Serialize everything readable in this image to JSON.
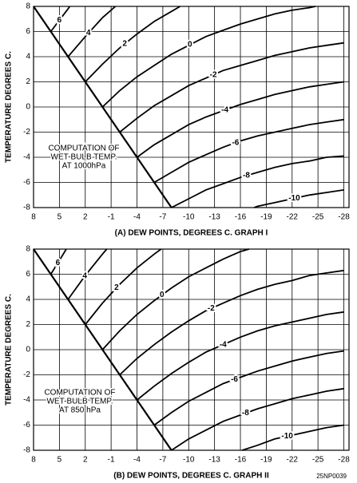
{
  "chart_data": [
    {
      "type": "line",
      "xlabel": "(A) DEW POINTS, DEGREES C. GRAPH I",
      "ylabel": "TEMPERATURE DEGREES C.",
      "annotation": [
        "COMPUTATION OF",
        "WET-BULB TEMP.",
        "AT 1000hPa"
      ],
      "xlim": [
        8,
        -28.6
      ],
      "ylim": [
        -8,
        8
      ],
      "xticks": [
        8,
        5,
        2,
        -1,
        -4,
        -7,
        -10,
        -13,
        -16,
        -19,
        -22,
        -25,
        -28
      ],
      "yticks": [
        8,
        6,
        4,
        2,
        0,
        -2,
        -4,
        -6,
        -8
      ],
      "grid": true,
      "diagonal": {
        "x": [
          8,
          -8
        ],
        "values": [
          8,
          -8
        ],
        "color": "#000000"
      },
      "series": [
        {
          "name": "6",
          "color": "#000000",
          "x": [
            6,
            4,
            3.8
          ],
          "values": [
            6,
            7.8,
            8
          ]
        },
        {
          "name": "4",
          "color": "#000000",
          "x": [
            4,
            2,
            0,
            -1.5
          ],
          "values": [
            4,
            5.6,
            7.1,
            8
          ]
        },
        {
          "name": "2",
          "color": "#000000",
          "x": [
            2,
            0,
            -2,
            -4,
            -6,
            -8,
            -9
          ],
          "values": [
            2,
            3.4,
            4.7,
            5.8,
            6.8,
            7.6,
            8
          ]
        },
        {
          "name": "0",
          "color": "#000000",
          "x": [
            0,
            -2,
            -4,
            -6,
            -8,
            -10,
            -12,
            -14,
            -16,
            -18,
            -20,
            -22,
            -24,
            -24.7
          ],
          "values": [
            0,
            1.3,
            2.4,
            3.3,
            4.2,
            4.9,
            5.6,
            6.1,
            6.6,
            7,
            7.4,
            7.7,
            7.9,
            8
          ]
        },
        {
          "name": "-2",
          "color": "#000000",
          "x": [
            -2,
            -4,
            -6,
            -8,
            -10,
            -12,
            -14,
            -16,
            -18,
            -20,
            -22,
            -24,
            -26,
            -28
          ],
          "values": [
            -2,
            -0.9,
            0.1,
            0.9,
            1.7,
            2.3,
            2.9,
            3.3,
            3.7,
            4.1,
            4.4,
            4.7,
            4.9,
            5.1
          ]
        },
        {
          "name": "-4",
          "color": "#000000",
          "x": [
            -4,
            -6,
            -8,
            -10,
            -12,
            -14,
            -16,
            -18,
            -20,
            -22,
            -24,
            -26,
            -28
          ],
          "values": [
            -4,
            -3,
            -2.2,
            -1.4,
            -0.8,
            -0.3,
            0.2,
            0.6,
            1,
            1.3,
            1.6,
            1.8,
            2
          ]
        },
        {
          "name": "-6",
          "color": "#000000",
          "x": [
            -6,
            -8,
            -10,
            -12,
            -14,
            -16,
            -18,
            -20,
            -22,
            -24,
            -26,
            -28
          ],
          "values": [
            -6,
            -5.2,
            -4.4,
            -3.8,
            -3.2,
            -2.7,
            -2.3,
            -2,
            -1.7,
            -1.4,
            -1.2,
            -1
          ]
        },
        {
          "name": "-8",
          "color": "#000000",
          "x": [
            -8,
            -10,
            -12,
            -14,
            -16,
            -18,
            -20,
            -22,
            -24,
            -26,
            -28
          ],
          "values": [
            -8,
            -7.3,
            -6.6,
            -6.1,
            -5.6,
            -5.2,
            -4.8,
            -4.5,
            -4.3,
            -4,
            -3.9
          ]
        },
        {
          "name": "-10",
          "color": "#000000",
          "x": [
            -17.6,
            -18,
            -20,
            -22,
            -24,
            -26,
            -28
          ],
          "values": [
            -8,
            -7.9,
            -7.6,
            -7.3,
            -7,
            -6.8,
            -6.6
          ]
        }
      ]
    },
    {
      "type": "line",
      "xlabel": "(B) DEW POINTS, DEGREES C. GRAPH II",
      "ylabel": "TEMPERATURE DEGREES C.",
      "annotation": [
        "COMPUTATION OF",
        "WET-BULB TEMP.",
        "AT 850 hPa"
      ],
      "xlim": [
        8,
        -28.6
      ],
      "ylim": [
        -8,
        8
      ],
      "xticks": [
        8,
        5,
        2,
        -1,
        -4,
        -7,
        -10,
        -13,
        -16,
        -19,
        -22,
        -25,
        -28
      ],
      "yticks": [
        8,
        6,
        4,
        2,
        0,
        -2,
        -4,
        -6,
        -8
      ],
      "grid": true,
      "diagonal": {
        "x": [
          8,
          -8
        ],
        "values": [
          8,
          -8
        ],
        "color": "#000000"
      },
      "series": [
        {
          "name": "6",
          "color": "#000000",
          "x": [
            6,
            5,
            4.2
          ],
          "values": [
            6,
            7.1,
            8
          ]
        },
        {
          "name": "4",
          "color": "#000000",
          "x": [
            4,
            2,
            0,
            -0.5
          ],
          "values": [
            4,
            5.9,
            7.6,
            8
          ]
        },
        {
          "name": "2",
          "color": "#000000",
          "x": [
            2,
            0,
            -2,
            -4,
            -6,
            -6.8
          ],
          "values": [
            2,
            3.7,
            5.2,
            6.5,
            7.6,
            8
          ]
        },
        {
          "name": "0",
          "color": "#000000",
          "x": [
            0,
            -2,
            -4,
            -6,
            -8,
            -10,
            -12,
            -14,
            -16,
            -17
          ],
          "values": [
            0,
            1.5,
            2.8,
            3.9,
            4.9,
            5.8,
            6.5,
            7.2,
            7.8,
            8
          ]
        },
        {
          "name": "-2",
          "color": "#000000",
          "x": [
            -2,
            -4,
            -6,
            -8,
            -10,
            -12,
            -14,
            -16,
            -18,
            -20,
            -22,
            -24,
            -26,
            -28
          ],
          "values": [
            -2,
            -0.7,
            0.4,
            1.4,
            2.3,
            3.1,
            3.7,
            4.3,
            4.8,
            5.2,
            5.5,
            5.9,
            6.1,
            6.3
          ]
        },
        {
          "name": "-4",
          "color": "#000000",
          "x": [
            -4,
            -6,
            -8,
            -10,
            -12,
            -14,
            -16,
            -18,
            -20,
            -22,
            -24,
            -26,
            -28
          ],
          "values": [
            -4,
            -2.9,
            -1.9,
            -1,
            -0.2,
            0.4,
            1,
            1.5,
            1.9,
            2.2,
            2.5,
            2.8,
            3
          ]
        },
        {
          "name": "-6",
          "color": "#000000",
          "x": [
            -6,
            -8,
            -10,
            -12,
            -14,
            -16,
            -18,
            -20,
            -22,
            -24,
            -26,
            -28
          ],
          "values": [
            -6,
            -5,
            -4.1,
            -3.4,
            -2.7,
            -2.2,
            -1.7,
            -1.3,
            -0.9,
            -0.6,
            -0.3,
            -0.1
          ]
        },
        {
          "name": "-8",
          "color": "#000000",
          "x": [
            -8,
            -10,
            -12,
            -14,
            -16,
            -18,
            -20,
            -22,
            -24,
            -26,
            -28
          ],
          "values": [
            -8,
            -7.1,
            -6.4,
            -5.7,
            -5.2,
            -4.7,
            -4.3,
            -3.9,
            -3.6,
            -3.3,
            -3.1
          ]
        },
        {
          "name": "-10",
          "color": "#000000",
          "x": [
            -16.2,
            -18,
            -20,
            -22,
            -24,
            -26,
            -28
          ],
          "values": [
            -8,
            -7.6,
            -7.1,
            -6.8,
            -6.5,
            -6.2,
            -6
          ]
        }
      ]
    }
  ],
  "code": "25NP0039"
}
